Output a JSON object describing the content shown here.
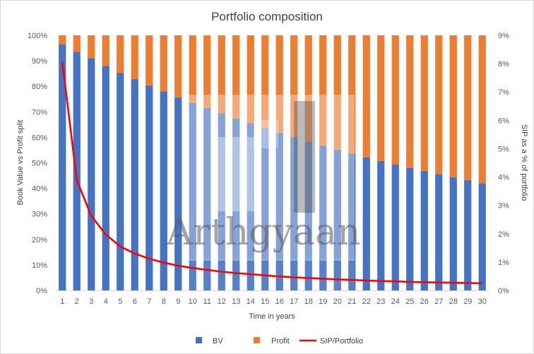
{
  "chart_data": {
    "type": "bar",
    "stacked": true,
    "percent_stacked": true,
    "title": "Portfolio composition",
    "xlabel": "Time in years",
    "ylabel": "Book Value vs Profit split",
    "y2label": "SIP as a % of portfolio",
    "categories": [
      "1",
      "2",
      "3",
      "4",
      "5",
      "6",
      "7",
      "8",
      "9",
      "10",
      "11",
      "12",
      "13",
      "14",
      "15",
      "16",
      "17",
      "18",
      "19",
      "20",
      "21",
      "22",
      "23",
      "24",
      "25",
      "26",
      "27",
      "28",
      "29",
      "30"
    ],
    "ylim": [
      0,
      1
    ],
    "y2lim": [
      0,
      0.09
    ],
    "yticks": [
      "0%",
      "10%",
      "20%",
      "30%",
      "40%",
      "50%",
      "60%",
      "70%",
      "80%",
      "90%",
      "100%"
    ],
    "y2ticks": [
      "0%",
      "1%",
      "2%",
      "3%",
      "4%",
      "5%",
      "6%",
      "7%",
      "8%",
      "9%"
    ],
    "grid": false,
    "legend_position": "bottom",
    "series": [
      {
        "name": "BV",
        "kind": "bar",
        "axis": "left",
        "color": "#4472c4",
        "values": [
          0.965,
          0.935,
          0.91,
          0.88,
          0.853,
          0.828,
          0.803,
          0.78,
          0.757,
          0.735,
          0.715,
          0.694,
          0.674,
          0.655,
          0.636,
          0.618,
          0.601,
          0.584,
          0.568,
          0.552,
          0.537,
          0.521,
          0.507,
          0.494,
          0.481,
          0.468,
          0.456,
          0.444,
          0.432,
          0.42
        ]
      },
      {
        "name": "Profit",
        "kind": "bar",
        "axis": "left",
        "color": "#ed7d31",
        "values": [
          0.035,
          0.065,
          0.09,
          0.12,
          0.147,
          0.172,
          0.197,
          0.22,
          0.243,
          0.265,
          0.285,
          0.306,
          0.326,
          0.345,
          0.364,
          0.382,
          0.399,
          0.416,
          0.432,
          0.448,
          0.463,
          0.479,
          0.493,
          0.506,
          0.519,
          0.532,
          0.544,
          0.556,
          0.568,
          0.58
        ]
      },
      {
        "name": "SIP/Portfolio",
        "kind": "line",
        "axis": "right",
        "color": "#ff0000",
        "values": [
          0.0806,
          0.0388,
          0.0263,
          0.0197,
          0.0155,
          0.013,
          0.0112,
          0.0098,
          0.0087,
          0.0079,
          0.0072,
          0.0066,
          0.0061,
          0.0057,
          0.0053,
          0.0049,
          0.0046,
          0.0044,
          0.0041,
          0.0039,
          0.0037,
          0.0035,
          0.0033,
          0.0032,
          0.003,
          0.0029,
          0.0028,
          0.0027,
          0.0026,
          0.0025
        ]
      }
    ],
    "watermark": "Arthgyaan"
  }
}
